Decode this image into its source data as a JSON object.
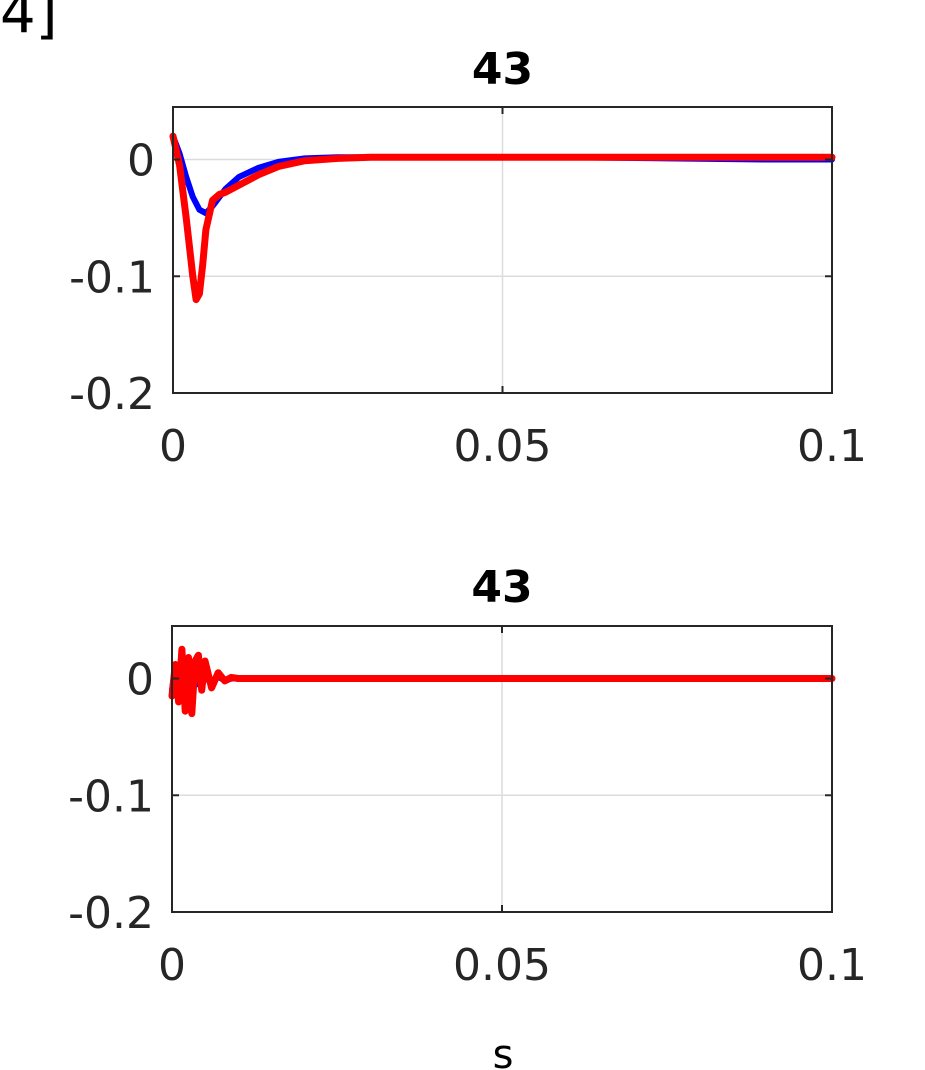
{
  "corner_text": "4]",
  "xlabel": "s",
  "colors": {
    "series_blue": "#0000ff",
    "series_red": "#ff0000",
    "axis": "#262626",
    "grid": "#dcdcdc"
  },
  "chart_data": [
    {
      "type": "line",
      "title": "43",
      "xlim": [
        0,
        0.1
      ],
      "ylim": [
        -0.2,
        0.045
      ],
      "xticks": [
        0,
        0.05,
        0.1
      ],
      "xtick_labels": [
        "0",
        "0.05",
        "0.1"
      ],
      "yticks": [
        0,
        -0.1,
        -0.2
      ],
      "ytick_labels": [
        "0",
        "-0.1",
        "-0.2"
      ],
      "grid": true,
      "series": [
        {
          "color": "#0000ff",
          "x": [
            0,
            0.001,
            0.002,
            0.003,
            0.004,
            0.005,
            0.006,
            0.008,
            0.01,
            0.013,
            0.016,
            0.02,
            0.025,
            0.03,
            0.04,
            0.06,
            0.075,
            0.09,
            0.1
          ],
          "y": [
            0.02,
            0.005,
            -0.015,
            -0.032,
            -0.043,
            -0.046,
            -0.04,
            -0.025,
            -0.015,
            -0.007,
            -0.002,
            0.001,
            0.002,
            0.002,
            0.002,
            0.002,
            0.001,
            0.0,
            0.0
          ]
        },
        {
          "color": "#ff0000",
          "x": [
            0,
            0.001,
            0.002,
            0.003,
            0.0035,
            0.004,
            0.0045,
            0.005,
            0.006,
            0.007,
            0.008,
            0.01,
            0.013,
            0.016,
            0.02,
            0.025,
            0.03,
            0.04,
            0.06,
            0.08,
            0.1
          ],
          "y": [
            0.02,
            -0.005,
            -0.05,
            -0.1,
            -0.12,
            -0.115,
            -0.09,
            -0.06,
            -0.035,
            -0.03,
            -0.028,
            -0.022,
            -0.013,
            -0.006,
            -0.001,
            0.001,
            0.002,
            0.002,
            0.002,
            0.002,
            0.002
          ]
        }
      ]
    },
    {
      "type": "line",
      "title": "43",
      "xlim": [
        0,
        0.1
      ],
      "ylim": [
        -0.2,
        0.045
      ],
      "xticks": [
        0,
        0.05,
        0.1
      ],
      "xtick_labels": [
        "0",
        "0.05",
        "0.1"
      ],
      "yticks": [
        0,
        -0.1,
        -0.2
      ],
      "ytick_labels": [
        "0",
        "-0.1",
        "-0.2"
      ],
      "grid": true,
      "series": [
        {
          "color": "#0000ff",
          "x": [
            0,
            0.0005,
            0.001,
            0.0015,
            0.002,
            0.0025,
            0.003,
            0.0035,
            0.004,
            0.005,
            0.006,
            0.007,
            0.008,
            0.009,
            0.01,
            0.03,
            0.05,
            0.07,
            0.09,
            0.1
          ],
          "y": [
            -0.01,
            0.01,
            -0.006,
            0.012,
            -0.008,
            0.006,
            -0.012,
            0.01,
            -0.005,
            0.004,
            -0.006,
            0.002,
            -0.002,
            0.0,
            0.0,
            0.0,
            0.0,
            0.0,
            0.0,
            0.0
          ]
        },
        {
          "color": "#ff0000",
          "x": [
            0,
            0.0005,
            0.001,
            0.0015,
            0.002,
            0.0025,
            0.003,
            0.0035,
            0.004,
            0.0045,
            0.005,
            0.006,
            0.007,
            0.008,
            0.009,
            0.01,
            0.03,
            0.05,
            0.07,
            0.09,
            0.1
          ],
          "y": [
            -0.015,
            0.012,
            -0.02,
            0.025,
            -0.028,
            0.018,
            -0.03,
            0.015,
            0.02,
            -0.01,
            0.015,
            -0.008,
            0.005,
            -0.002,
            0.001,
            0.0,
            0.0,
            0.0,
            0.0,
            0.0,
            0.0
          ]
        }
      ]
    }
  ]
}
